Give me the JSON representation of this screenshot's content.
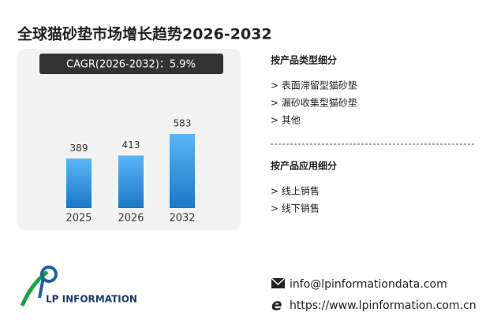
{
  "chart_data": {
    "type": "bar",
    "title": "全球猫砂垫市场增长趋势2026-2032",
    "subtitle": "CAGR(2026-2032)：5.9%",
    "categories": [
      "2025",
      "2026",
      "2032"
    ],
    "values": [
      389,
      413,
      583
    ],
    "color": "#3a9be8"
  },
  "segments": [
    {
      "title": "按产品类型细分",
      "items": [
        "> 表面滞留型猫砂垫",
        "> 漏砂收集型猫砂垫",
        "> 其他"
      ]
    },
    {
      "title": "按产品应用细分",
      "items": [
        "> 线上销售",
        "> 线下销售"
      ]
    }
  ],
  "contact": {
    "email": "info@lpinformationdata.com",
    "website": "https://www.lpinformation.com.cn"
  },
  "logo": "LP INFORMATION"
}
